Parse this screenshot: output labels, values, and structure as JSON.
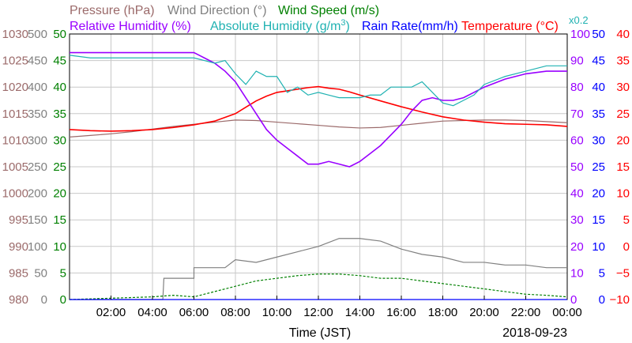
{
  "chart_data": {
    "type": "line",
    "date": "2018-09-23",
    "xlabel": "Time (JST)",
    "x_ticks": [
      "02:00",
      "04:00",
      "06:00",
      "08:00",
      "10:00",
      "12:00",
      "14:00",
      "16:00",
      "18:00",
      "20:00",
      "22:00",
      "00:00"
    ],
    "titles": {
      "pressure": "Pressure (hPa)",
      "wind_direction": "Wind Direction (°)",
      "wind_speed": "Wind Speed (m/s)",
      "relative_humidity": "Relative Humidity (%)",
      "absolute_humidity": "Absolute Humidity (g/m",
      "absolute_humidity_sup": "3",
      "absolute_humidity_close": ")",
      "rain_rate": "Rain Rate(mm/h)",
      "temperature": "Temperature (°C)",
      "abs_hum_factor": "x0.2"
    },
    "axes": {
      "pressure": {
        "ticks": [
          "980",
          "985",
          "990",
          "995",
          "1000",
          "1005",
          "1010",
          "1015",
          "1020",
          "1025",
          "1030"
        ],
        "ylim": [
          980,
          1030
        ],
        "color": "#9b6a6a"
      },
      "wind_direction": {
        "ticks": [
          "0",
          "50",
          "100",
          "150",
          "200",
          "250",
          "300",
          "350",
          "400",
          "450",
          "500"
        ],
        "ylim": [
          0,
          500
        ],
        "color": "#808080"
      },
      "wind_speed": {
        "ticks": [
          "0",
          "5",
          "10",
          "15",
          "20",
          "25",
          "30",
          "35",
          "40",
          "45",
          "50"
        ],
        "ylim": [
          0,
          50
        ],
        "color": "#008000"
      },
      "relative_humidity": {
        "ticks": [
          "0",
          "10",
          "20",
          "30",
          "40",
          "50",
          "60",
          "70",
          "80",
          "90",
          "100"
        ],
        "ylim": [
          0,
          100
        ],
        "color": "#9900ff"
      },
      "rain_rate": {
        "ticks": [
          "0",
          "5",
          "10",
          "15",
          "20",
          "25",
          "30",
          "35",
          "40",
          "45",
          "50"
        ],
        "ylim": [
          0,
          50
        ],
        "color": "#0000ff"
      },
      "temperature": {
        "ticks": [
          "−10",
          "−5",
          "0",
          "5",
          "10",
          "15",
          "20",
          "25",
          "30",
          "35",
          "40"
        ],
        "ylim": [
          -10,
          40
        ],
        "color": "#ff0000"
      },
      "absolute_humidity": {
        "ylim_scaled": [
          0,
          100
        ],
        "factor": 0.2,
        "color": "#20b2b2"
      }
    },
    "series": [
      {
        "name": "Pressure",
        "axis": "pressure",
        "color": "#9b6a6a",
        "x": [
          0,
          1,
          2,
          3,
          4,
          5,
          6,
          7,
          8,
          9,
          10,
          11,
          12,
          13,
          14,
          15,
          16,
          17,
          18,
          19,
          20,
          21,
          22,
          23,
          24
        ],
        "y": [
          1010.6,
          1010.9,
          1011.2,
          1011.6,
          1012.1,
          1012.6,
          1013.0,
          1013.4,
          1013.8,
          1013.7,
          1013.4,
          1013.1,
          1012.8,
          1012.5,
          1012.3,
          1012.4,
          1012.8,
          1013.2,
          1013.6,
          1013.7,
          1013.8,
          1013.8,
          1013.7,
          1013.5,
          1013.3
        ]
      },
      {
        "name": "Temperature",
        "axis": "temperature",
        "color": "#ff0000",
        "x": [
          0,
          1,
          2,
          3,
          4,
          5,
          6,
          7,
          7.5,
          8,
          8.5,
          9,
          9.5,
          10,
          10.5,
          11,
          11.5,
          12,
          12.5,
          13,
          13.5,
          14,
          15,
          16,
          17,
          18,
          19,
          20,
          21,
          22,
          23,
          24
        ],
        "y": [
          22.0,
          21.8,
          21.7,
          21.8,
          22.0,
          22.4,
          22.9,
          23.6,
          24.3,
          25.0,
          26.2,
          27.4,
          28.3,
          29.0,
          29.3,
          29.6,
          29.9,
          30.1,
          29.8,
          29.6,
          29.1,
          28.5,
          27.4,
          26.3,
          25.3,
          24.4,
          23.8,
          23.4,
          23.1,
          23.0,
          22.9,
          22.6
        ]
      },
      {
        "name": "Relative Humidity",
        "axis": "relative_humidity",
        "color": "#9900ff",
        "x": [
          0,
          1,
          2,
          3,
          4,
          5,
          6,
          6.5,
          7,
          7.5,
          8,
          8.5,
          9,
          9.5,
          10,
          10.5,
          11,
          11.5,
          12,
          12.5,
          13,
          13.5,
          14,
          14.5,
          15,
          15.5,
          16,
          16.5,
          17,
          17.5,
          18,
          18.5,
          19,
          19.5,
          20,
          21,
          22,
          23,
          24
        ],
        "y": [
          93,
          93,
          93,
          93,
          93,
          93,
          93,
          91,
          89,
          86,
          82,
          76,
          70,
          64,
          60,
          57,
          54,
          51,
          51,
          52,
          51,
          50,
          52,
          55,
          58,
          62,
          66,
          71,
          75,
          76,
          75,
          75,
          76,
          78,
          80,
          83,
          85,
          86,
          86
        ]
      },
      {
        "name": "Absolute Humidity",
        "axis": "absolute_humidity",
        "color": "#20b2b2",
        "x": [
          0,
          1,
          2,
          3,
          4,
          5,
          6,
          6.5,
          7,
          7.5,
          8,
          8.5,
          9,
          9.5,
          10,
          10.5,
          11,
          11.5,
          12,
          12.5,
          13,
          13.5,
          14,
          14.5,
          15,
          15.5,
          16,
          16.5,
          17,
          17.5,
          18,
          18.5,
          19,
          19.5,
          20,
          21,
          22,
          23,
          24
        ],
        "y": [
          92,
          91,
          91,
          91,
          91,
          91,
          91,
          90,
          89,
          90,
          85,
          81,
          86,
          84,
          84,
          78,
          80,
          77,
          78,
          77,
          76,
          76,
          76,
          77,
          77,
          80,
          80,
          80,
          82,
          78,
          74,
          73,
          75,
          77,
          81,
          84,
          86,
          88,
          88
        ]
      },
      {
        "name": "Wind Direction",
        "axis": "wind_direction",
        "color": "#808080",
        "x": [
          0,
          4.5,
          4.55,
          6,
          6,
          7.5,
          8,
          9,
          10,
          11,
          12,
          13,
          14,
          15,
          16,
          17,
          18,
          19,
          20,
          21,
          22,
          23,
          24
        ],
        "y": [
          0,
          0,
          40,
          40,
          60,
          60,
          75,
          70,
          80,
          90,
          100,
          115,
          115,
          110,
          95,
          85,
          80,
          70,
          70,
          65,
          65,
          60,
          60
        ]
      },
      {
        "name": "Wind Speed",
        "axis": "wind_speed",
        "color": "#008000",
        "x": [
          0,
          4,
          5,
          6,
          7,
          8,
          9,
          10,
          11,
          12,
          13,
          14,
          15,
          16,
          17,
          18,
          19,
          20,
          21,
          22,
          23,
          24
        ],
        "y": [
          0,
          0.5,
          0.8,
          0.5,
          1.5,
          2.5,
          3.5,
          4.0,
          4.5,
          4.8,
          4.8,
          4.5,
          4.0,
          4.0,
          3.5,
          3.0,
          2.5,
          2.0,
          1.5,
          1.0,
          0.8,
          0.5
        ]
      },
      {
        "name": "Rain Rate",
        "axis": "rain_rate",
        "color": "#0000ff",
        "x": [
          0,
          24
        ],
        "y": [
          0,
          0
        ]
      }
    ]
  }
}
